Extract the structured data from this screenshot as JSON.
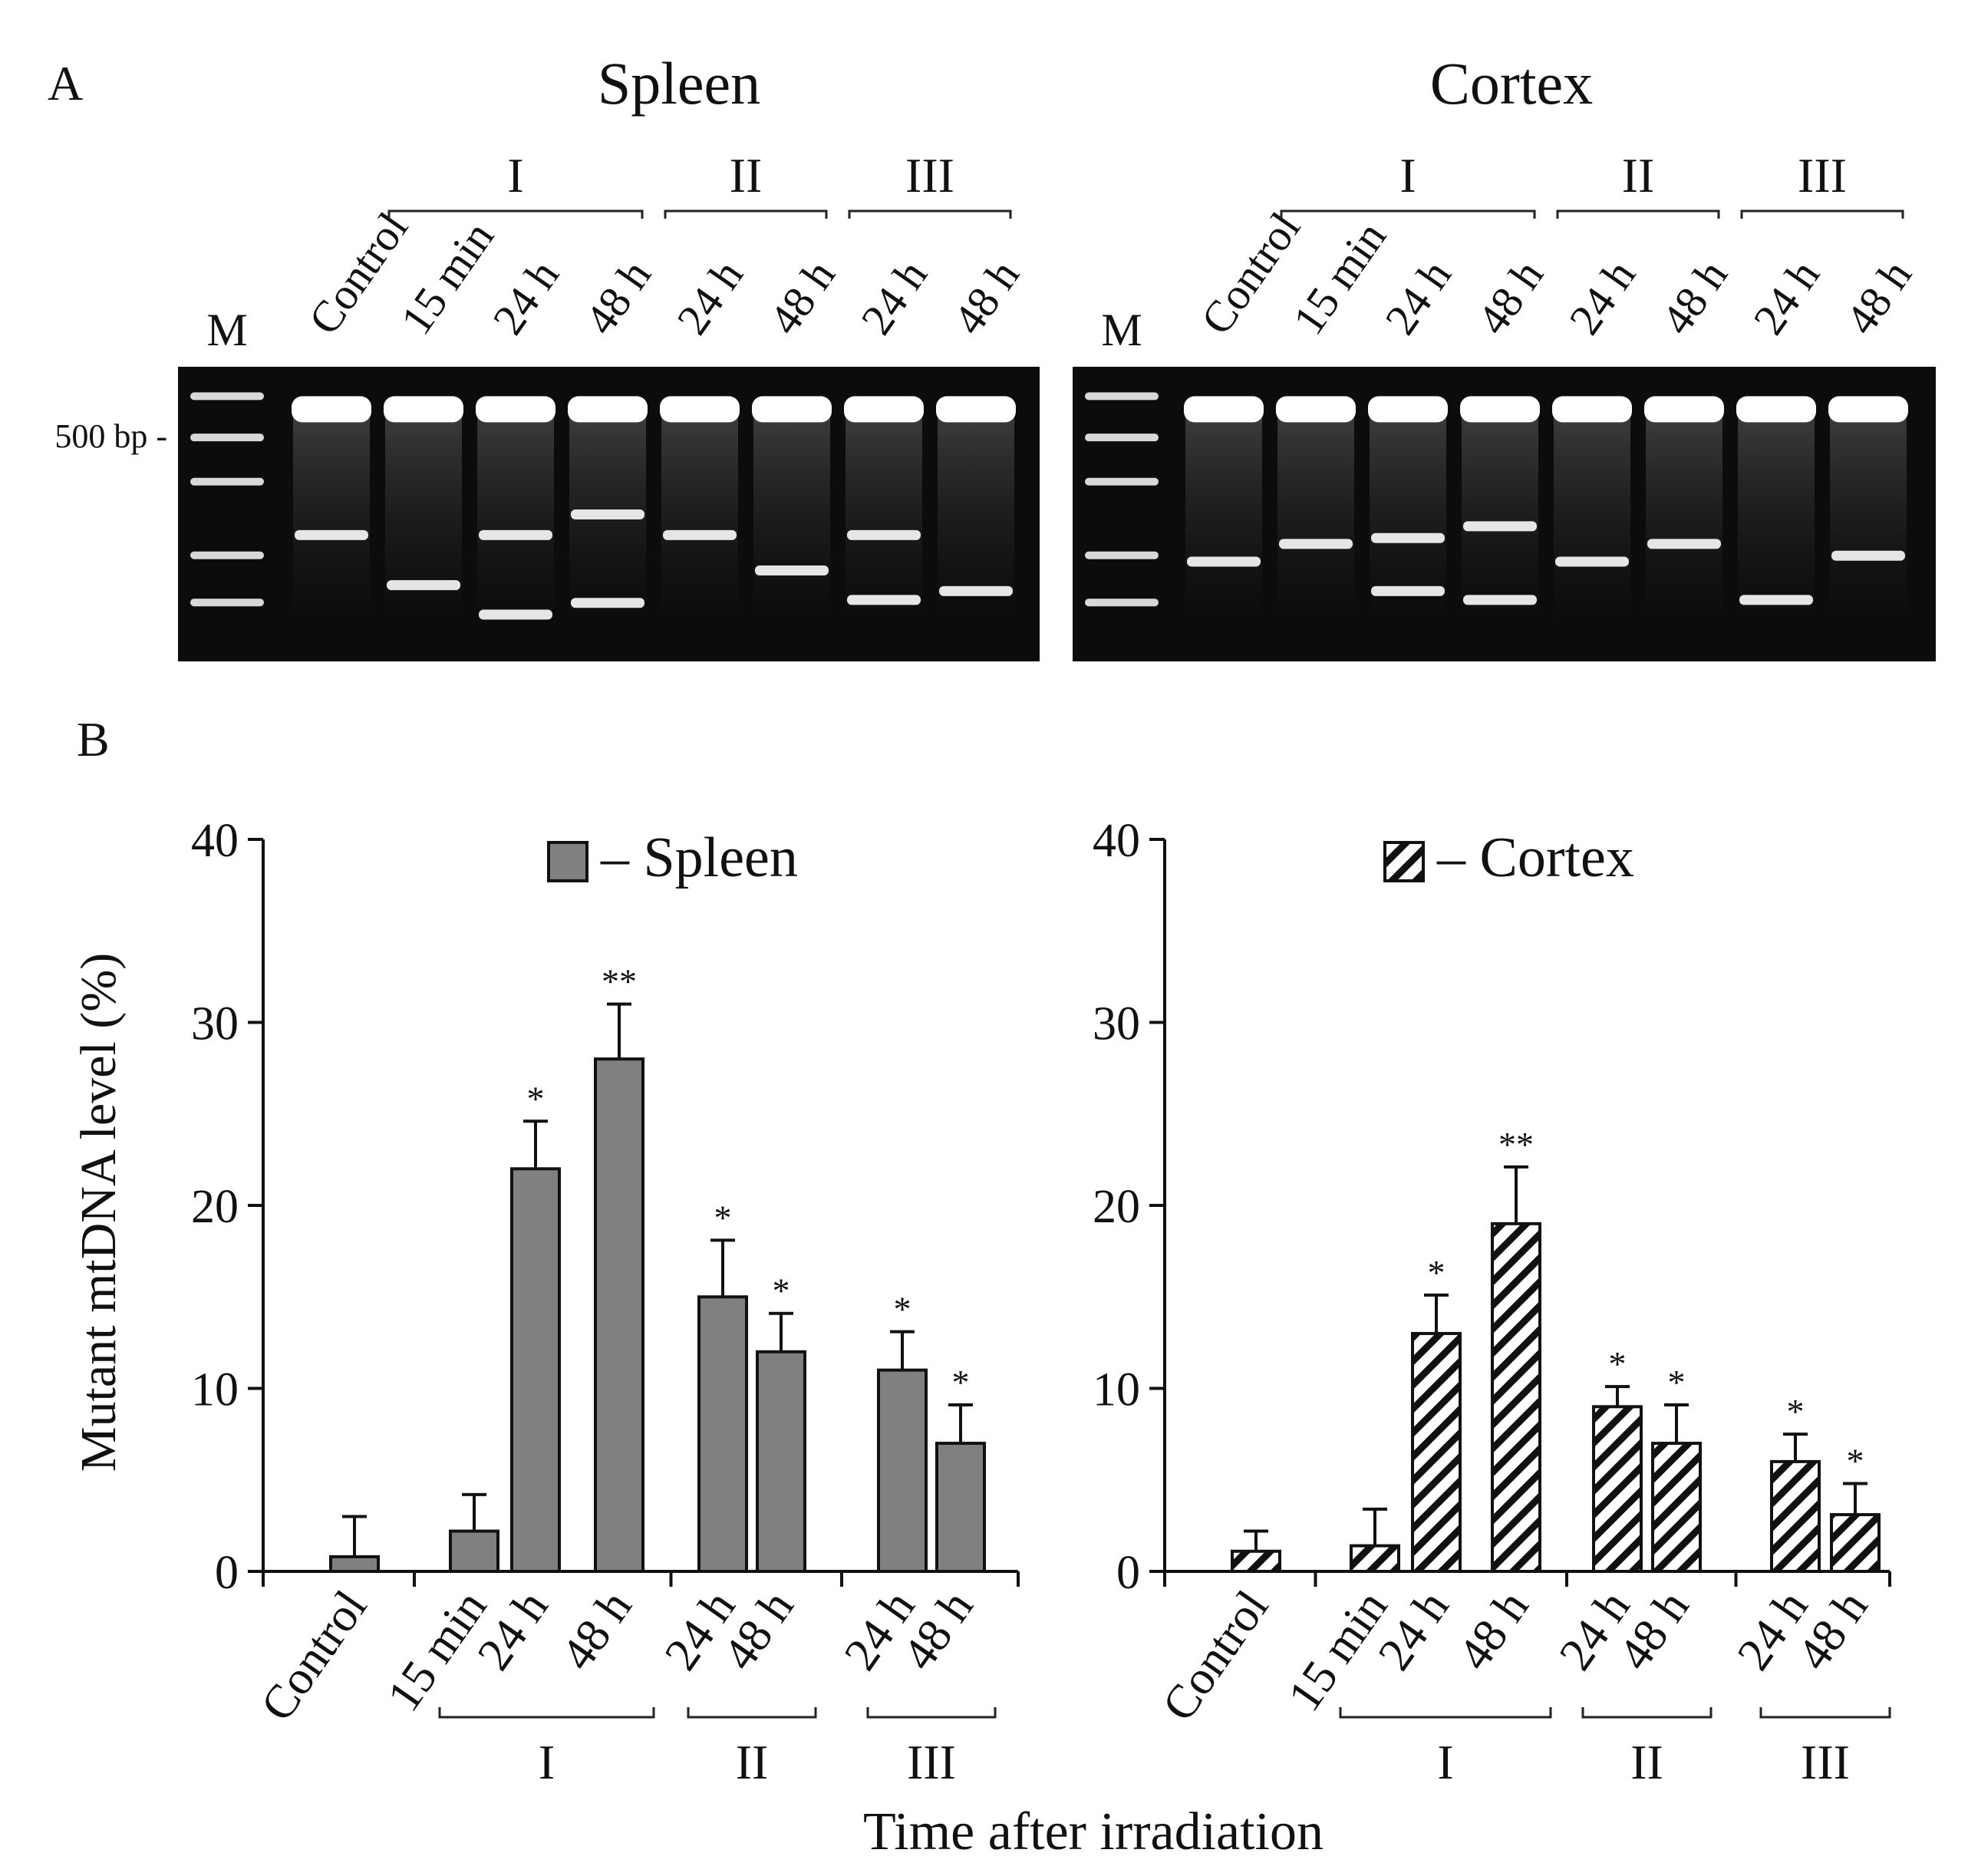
{
  "panel_labels": {
    "a": "A",
    "b": "B"
  },
  "colors": {
    "spleen_bar": "#808080",
    "gel_bg": "#0c0c0c",
    "band": "#ffffff"
  },
  "gels": [
    {
      "title": "Spleen",
      "marker_label": "M",
      "size_label": "500 bp -",
      "lanes": [
        "Control",
        "15 min",
        "24 h",
        "48 h",
        "24 h",
        "48 h",
        "24 h",
        "48 h"
      ],
      "groups": [
        {
          "label": "I",
          "from": 1,
          "to": 3
        },
        {
          "label": "II",
          "from": 4,
          "to": 5
        },
        {
          "label": "III",
          "from": 6,
          "to": 7
        }
      ],
      "extra_bands": [
        [
          0.57
        ],
        [
          0.74
        ],
        [
          0.57,
          0.84
        ],
        [
          0.5,
          0.8
        ],
        [
          0.57
        ],
        [
          0.69
        ],
        [
          0.57,
          0.79
        ],
        [
          0.76
        ]
      ]
    },
    {
      "title": "Cortex",
      "marker_label": "M",
      "lanes": [
        "Control",
        "15 min",
        "24 h",
        "48 h",
        "24 h",
        "48 h",
        "24 h",
        "48 h"
      ],
      "groups": [
        {
          "label": "I",
          "from": 1,
          "to": 3
        },
        {
          "label": "II",
          "from": 4,
          "to": 5
        },
        {
          "label": "III",
          "from": 6,
          "to": 7
        }
      ],
      "extra_bands": [
        [
          0.66
        ],
        [
          0.6
        ],
        [
          0.58,
          0.76
        ],
        [
          0.54,
          0.79
        ],
        [
          0.66
        ],
        [
          0.6
        ],
        [
          0.79
        ],
        [
          0.64
        ]
      ]
    }
  ],
  "chart_data": [
    {
      "type": "bar",
      "legend_label": "– Spleen",
      "legend_position": "top",
      "fill": "solid",
      "categories": [
        "Control",
        "15 min",
        "24 h",
        "48 h",
        "24 h",
        "48 h",
        "24 h",
        "48 h"
      ],
      "values": [
        0.8,
        2.2,
        22,
        28,
        15,
        12,
        11,
        7
      ],
      "errors": [
        2.2,
        2.0,
        2.6,
        3.0,
        3.1,
        2.1,
        2.1,
        2.1
      ],
      "significance": [
        "",
        "",
        "*",
        "**",
        "*",
        "*",
        "*",
        "*"
      ],
      "groups": [
        {
          "label": "I",
          "from": 1,
          "to": 3
        },
        {
          "label": "II",
          "from": 4,
          "to": 5
        },
        {
          "label": "III",
          "from": 6,
          "to": 7
        }
      ],
      "ylabel": "Mutant mtDNA level (%)",
      "ylim": [
        0,
        40
      ],
      "yticks": [
        0,
        10,
        20,
        30,
        40
      ]
    },
    {
      "type": "bar",
      "legend_label": "– Cortex",
      "legend_position": "top",
      "fill": "hatched",
      "categories": [
        "Control",
        "15 min",
        "24 h",
        "48 h",
        "24 h",
        "48 h",
        "24 h",
        "48 h"
      ],
      "values": [
        1.1,
        1.4,
        13,
        19,
        9,
        7,
        6,
        3.1
      ],
      "errors": [
        1.1,
        2.0,
        2.1,
        3.1,
        1.1,
        2.1,
        1.5,
        1.7
      ],
      "significance": [
        "",
        "",
        "*",
        "**",
        "*",
        "*",
        "*",
        "*"
      ],
      "groups": [
        {
          "label": "I",
          "from": 1,
          "to": 3
        },
        {
          "label": "II",
          "from": 4,
          "to": 5
        },
        {
          "label": "III",
          "from": 6,
          "to": 7
        }
      ],
      "ylim": [
        0,
        40
      ],
      "yticks": [
        0,
        10,
        20,
        30,
        40
      ]
    }
  ],
  "xlabel": "Time after irradiation"
}
